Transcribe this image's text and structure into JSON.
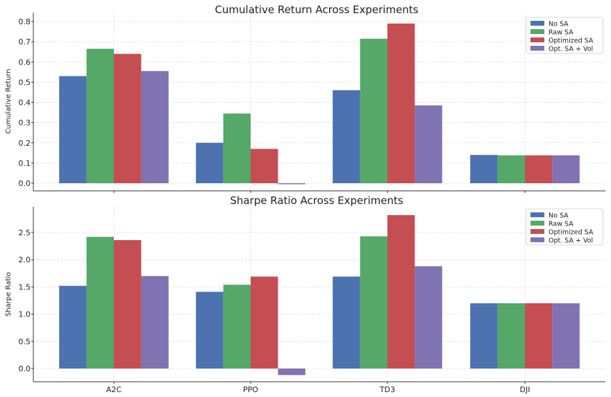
{
  "chart_data": [
    {
      "type": "bar",
      "title": "Cumulative Return Across Experiments",
      "xlabel": "",
      "ylabel": "Cumulative Return",
      "categories": [
        "A2C",
        "PPO",
        "TD3",
        "DJI"
      ],
      "series": [
        {
          "name": "No SA",
          "color": "#4c72b0",
          "values": [
            0.53,
            0.2,
            0.46,
            0.14
          ]
        },
        {
          "name": "Raw SA",
          "color": "#55a868",
          "values": [
            0.665,
            0.345,
            0.715,
            0.138
          ]
        },
        {
          "name": "Optimized SA",
          "color": "#c44e52",
          "values": [
            0.64,
            0.17,
            0.79,
            0.138
          ]
        },
        {
          "name": "Opt. SA + Vol",
          "color": "#8172b2",
          "values": [
            0.555,
            -0.005,
            0.385,
            0.138
          ]
        }
      ],
      "ylim": [
        -0.04,
        0.83
      ],
      "yticks": [
        "0.0",
        "0.1",
        "0.2",
        "0.3",
        "0.4",
        "0.5",
        "0.6",
        "0.7",
        "0.8"
      ],
      "grid": true,
      "legend": "top-right"
    },
    {
      "type": "bar",
      "title": "Sharpe Ratio Across Experiments",
      "xlabel": "",
      "ylabel": "Sharpe Ratio",
      "categories": [
        "A2C",
        "PPO",
        "TD3",
        "DJI"
      ],
      "series": [
        {
          "name": "No SA",
          "color": "#4c72b0",
          "values": [
            1.52,
            1.41,
            1.69,
            1.2
          ]
        },
        {
          "name": "Raw SA",
          "color": "#55a868",
          "values": [
            2.42,
            1.54,
            2.43,
            1.2
          ]
        },
        {
          "name": "Optimized SA",
          "color": "#c44e52",
          "values": [
            2.36,
            1.69,
            2.82,
            1.2
          ]
        },
        {
          "name": "Opt. SA + Vol",
          "color": "#8172b2",
          "values": [
            1.7,
            -0.12,
            1.88,
            1.2
          ]
        }
      ],
      "ylim": [
        -0.2,
        3.0
      ],
      "yticks": [
        "0.0",
        "0.5",
        "1.0",
        "1.5",
        "2.0",
        "2.5"
      ],
      "grid": true,
      "legend": "top-right"
    }
  ]
}
